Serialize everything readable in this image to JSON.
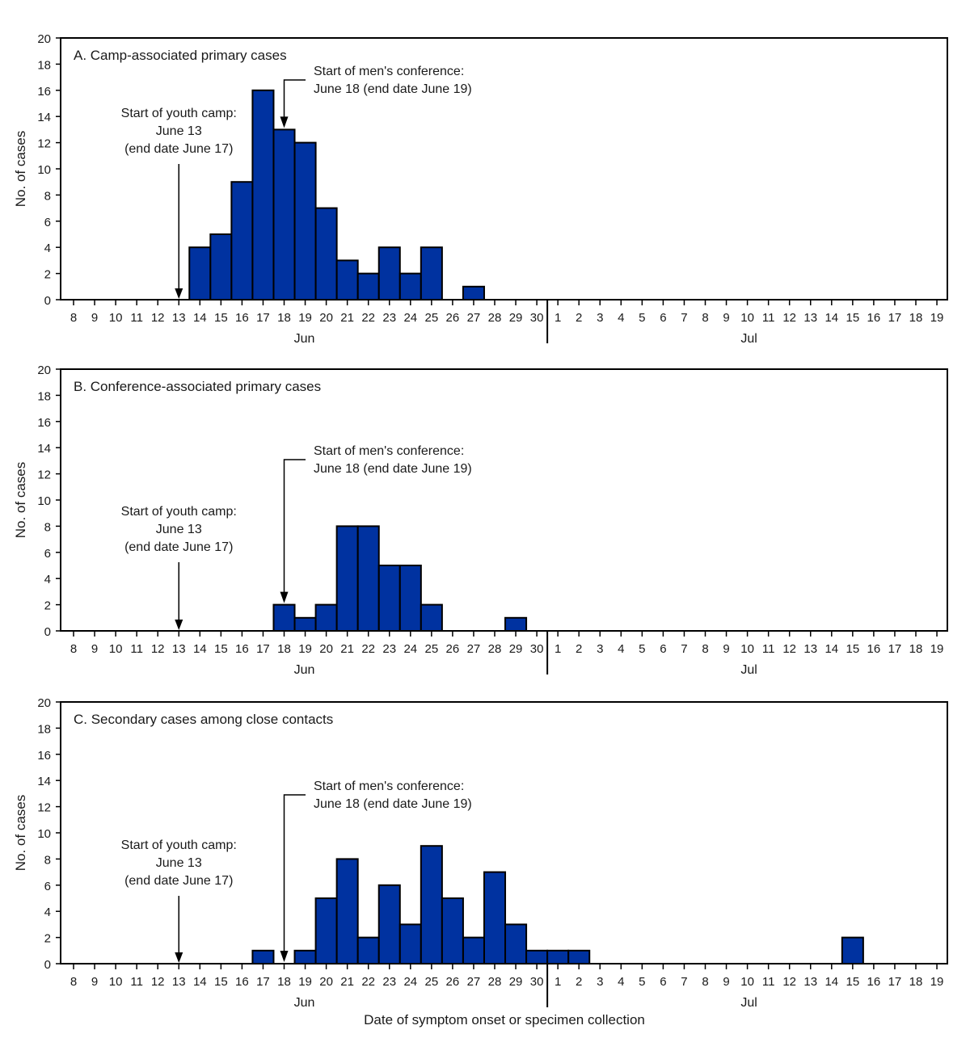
{
  "chart_data": [
    {
      "type": "bar",
      "title": "A. Camp-associated primary cases",
      "ylabel": "No. of cases",
      "ylim": [
        0,
        20
      ],
      "yticks": [
        0,
        2,
        4,
        6,
        8,
        10,
        12,
        14,
        16,
        18,
        20
      ],
      "months": [
        "Jun",
        "Jul"
      ],
      "categories": [
        "Jun 8",
        "Jun 9",
        "Jun 10",
        "Jun 11",
        "Jun 12",
        "Jun 13",
        "Jun 14",
        "Jun 15",
        "Jun 16",
        "Jun 17",
        "Jun 18",
        "Jun 19",
        "Jun 20",
        "Jun 21",
        "Jun 22",
        "Jun 23",
        "Jun 24",
        "Jun 25",
        "Jun 26",
        "Jun 27",
        "Jun 28",
        "Jun 29",
        "Jun 30",
        "Jul 1",
        "Jul 2",
        "Jul 3",
        "Jul 4",
        "Jul 5",
        "Jul 6",
        "Jul 7",
        "Jul 8",
        "Jul 9",
        "Jul 10",
        "Jul 11",
        "Jul 12",
        "Jul 13",
        "Jul 14",
        "Jul 15",
        "Jul 16",
        "Jul 17",
        "Jul 18",
        "Jul 19"
      ],
      "tick_labels": [
        "8",
        "9",
        "10",
        "11",
        "12",
        "13",
        "14",
        "15",
        "16",
        "17",
        "18",
        "19",
        "20",
        "21",
        "22",
        "23",
        "24",
        "25",
        "26",
        "27",
        "28",
        "29",
        "30",
        "1",
        "2",
        "3",
        "4",
        "5",
        "6",
        "7",
        "8",
        "9",
        "10",
        "11",
        "12",
        "13",
        "14",
        "15",
        "16",
        "17",
        "18",
        "19"
      ],
      "values": [
        0,
        0,
        0,
        0,
        0,
        0,
        4,
        5,
        9,
        16,
        13,
        12,
        7,
        3,
        2,
        4,
        2,
        4,
        0,
        1,
        0,
        0,
        0,
        0,
        0,
        0,
        0,
        0,
        0,
        0,
        0,
        0,
        0,
        0,
        0,
        0,
        0,
        0,
        0,
        0,
        0,
        0
      ],
      "annotations": [
        {
          "lines": [
            "Start of youth camp:",
            "June 13",
            "(end date June 17)"
          ],
          "date_index": 5
        },
        {
          "lines": [
            "Start of men's conference:",
            "June 18 (end date June 19)"
          ],
          "date_index": 10
        }
      ]
    },
    {
      "type": "bar",
      "title": "B. Conference-associated primary cases",
      "ylabel": "No. of cases",
      "ylim": [
        0,
        20
      ],
      "yticks": [
        0,
        2,
        4,
        6,
        8,
        10,
        12,
        14,
        16,
        18,
        20
      ],
      "months": [
        "Jun",
        "Jul"
      ],
      "tick_labels": [
        "8",
        "9",
        "10",
        "11",
        "12",
        "13",
        "14",
        "15",
        "16",
        "17",
        "18",
        "19",
        "20",
        "21",
        "22",
        "23",
        "24",
        "25",
        "26",
        "27",
        "28",
        "29",
        "30",
        "1",
        "2",
        "3",
        "4",
        "5",
        "6",
        "7",
        "8",
        "9",
        "10",
        "11",
        "12",
        "13",
        "14",
        "15",
        "16",
        "17",
        "18",
        "19"
      ],
      "values": [
        0,
        0,
        0,
        0,
        0,
        0,
        0,
        0,
        0,
        0,
        2,
        1,
        2,
        8,
        8,
        5,
        5,
        2,
        0,
        0,
        0,
        1,
        0,
        0,
        0,
        0,
        0,
        0,
        0,
        0,
        0,
        0,
        0,
        0,
        0,
        0,
        0,
        0,
        0,
        0,
        0,
        0
      ],
      "annotations": [
        {
          "lines": [
            "Start of youth camp:",
            "June 13",
            "(end date June 17)"
          ],
          "date_index": 5
        },
        {
          "lines": [
            "Start of men's conference:",
            "June 18 (end date June 19)"
          ],
          "date_index": 10
        }
      ]
    },
    {
      "type": "bar",
      "title": "C. Secondary cases among close contacts",
      "ylabel": "No. of cases",
      "xlabel": "Date of symptom onset or specimen collection",
      "ylim": [
        0,
        20
      ],
      "yticks": [
        0,
        2,
        4,
        6,
        8,
        10,
        12,
        14,
        16,
        18,
        20
      ],
      "months": [
        "Jun",
        "Jul"
      ],
      "tick_labels": [
        "8",
        "9",
        "10",
        "11",
        "12",
        "13",
        "14",
        "15",
        "16",
        "17",
        "18",
        "19",
        "20",
        "21",
        "22",
        "23",
        "24",
        "25",
        "26",
        "27",
        "28",
        "29",
        "30",
        "1",
        "2",
        "3",
        "4",
        "5",
        "6",
        "7",
        "8",
        "9",
        "10",
        "11",
        "12",
        "13",
        "14",
        "15",
        "16",
        "17",
        "18",
        "19"
      ],
      "values": [
        0,
        0,
        0,
        0,
        0,
        0,
        0,
        0,
        0,
        1,
        0,
        1,
        5,
        8,
        2,
        6,
        3,
        9,
        5,
        2,
        7,
        3,
        1,
        1,
        1,
        0,
        0,
        0,
        0,
        0,
        0,
        0,
        0,
        0,
        0,
        0,
        0,
        2,
        0,
        0,
        0,
        0
      ],
      "annotations": [
        {
          "lines": [
            "Start of youth camp:",
            "June 13",
            "(end date June 17)"
          ],
          "date_index": 5
        },
        {
          "lines": [
            "Start of men's conference:",
            "June 18 (end date June 19)"
          ],
          "date_index": 10
        }
      ]
    }
  ],
  "colors": {
    "bar": "#0032a0",
    "bar_outline": "#000000",
    "axis": "#000000"
  }
}
